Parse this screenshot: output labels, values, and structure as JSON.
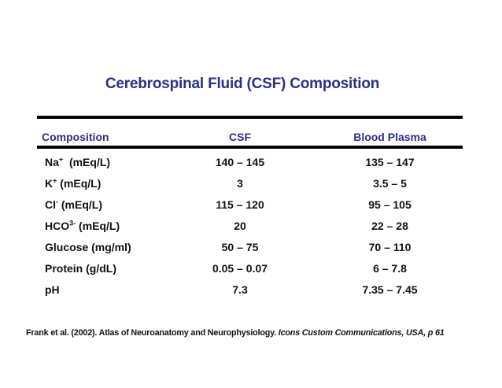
{
  "slide": {
    "title": "Cerebrospinal Fluid (CSF) Composition",
    "footer": {
      "citation": "Frank et al. (2002). Atlas of Neuroanatomy and Neurophysiology. ",
      "citation_source_italic": "Icons Custom Communications, USA, p 61"
    }
  },
  "colors": {
    "title_navy": "#2d2f86",
    "header_navy": "#2d2f86",
    "body_text": "#111111",
    "rule_black": "#000000",
    "background": "#ffffff"
  },
  "table": {
    "headers": {
      "composition": "Composition",
      "csf": "CSF",
      "blood_plasma": "Blood Plasma"
    },
    "rows": [
      {
        "label": {
          "prefix": "Na",
          "sup": "+",
          "suffix": "  (mEq/L)"
        },
        "csf": "140 – 145",
        "plasma": "135 – 147"
      },
      {
        "label": {
          "prefix": "K",
          "sup": "+",
          "suffix": " (mEq/L)"
        },
        "csf": "3",
        "plasma": "3.5 – 5"
      },
      {
        "label": {
          "prefix": "Cl",
          "sup": "-",
          "suffix": " (mEq/L)"
        },
        "csf": "115 – 120",
        "plasma": "95 – 105"
      },
      {
        "label": {
          "prefix": "HCO",
          "sup": "3-",
          "suffix": " (mEq/L)"
        },
        "csf": "20",
        "plasma": "22 – 28"
      },
      {
        "label": {
          "prefix": "Glucose (mg/ml)",
          "sup": "",
          "suffix": ""
        },
        "csf": "50 – 75",
        "plasma": "70 – 110"
      },
      {
        "label": {
          "prefix": "Protein (g/dL)",
          "sup": "",
          "suffix": ""
        },
        "csf": "0.05 – 0.07",
        "plasma": "6 – 7.8"
      },
      {
        "label": {
          "prefix": "pH",
          "sup": "",
          "suffix": ""
        },
        "csf": "7.3",
        "plasma": "7.35 – 7.45"
      }
    ]
  }
}
